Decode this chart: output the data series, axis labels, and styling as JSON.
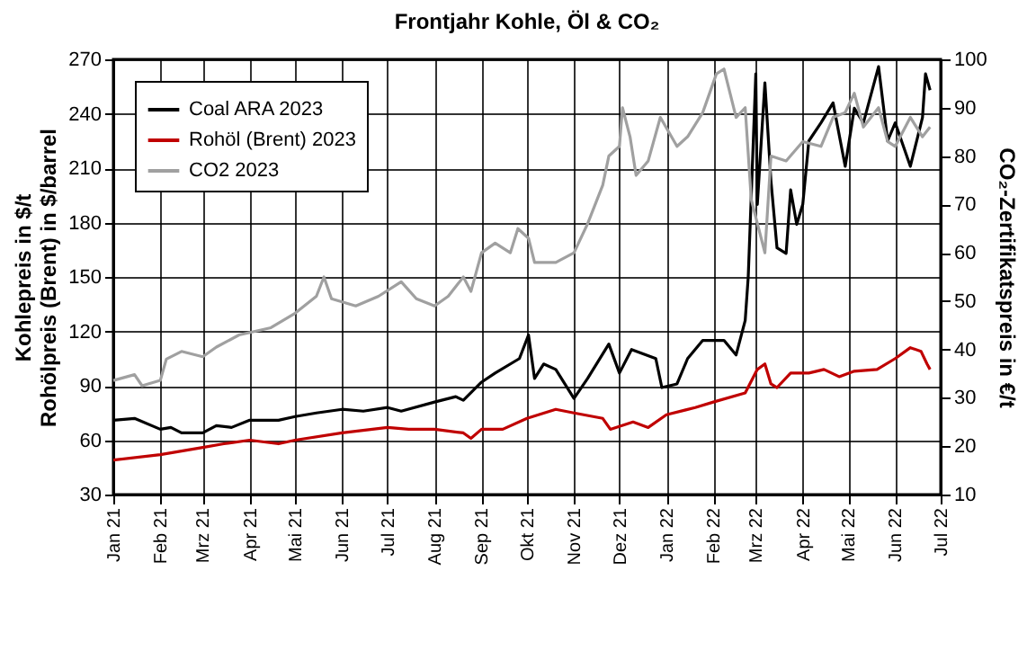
{
  "chart_data": {
    "type": "line",
    "title": "Frontjahr Kohle, Öl & CO₂",
    "ylabel": "Kohlepreis in $/t\nRohölpreis (Brent) in $/barrel",
    "y2label": "CO₂-Zertifikatspreis in €/t",
    "xlim": [
      "2021-01-01",
      "2022-07-01"
    ],
    "xticks": [
      {
        "value": "2021-01-01",
        "label": "Jan 21"
      },
      {
        "value": "2021-02-01",
        "label": "Feb 21"
      },
      {
        "value": "2021-03-01",
        "label": "Mrz 21"
      },
      {
        "value": "2021-04-01",
        "label": "Apr 21"
      },
      {
        "value": "2021-05-01",
        "label": "Mai 21"
      },
      {
        "value": "2021-06-01",
        "label": "Jun 21"
      },
      {
        "value": "2021-07-01",
        "label": "Jul 21"
      },
      {
        "value": "2021-08-01",
        "label": "Aug 21"
      },
      {
        "value": "2021-09-01",
        "label": "Sep 21"
      },
      {
        "value": "2021-10-01",
        "label": "Okt 21"
      },
      {
        "value": "2021-11-01",
        "label": "Nov 21"
      },
      {
        "value": "2021-12-01",
        "label": "Dez 21"
      },
      {
        "value": "2022-01-01",
        "label": "Jan 22"
      },
      {
        "value": "2022-02-01",
        "label": "Feb 22"
      },
      {
        "value": "2022-03-01",
        "label": "Mrz 22"
      },
      {
        "value": "2022-04-01",
        "label": "Apr 22"
      },
      {
        "value": "2022-05-01",
        "label": "Mai 22"
      },
      {
        "value": "2022-06-01",
        "label": "Jun 22"
      },
      {
        "value": "2022-07-01",
        "label": "Jul 22"
      }
    ],
    "ylim": [
      30,
      270
    ],
    "yticks": [
      30,
      60,
      90,
      120,
      150,
      180,
      210,
      240,
      270
    ],
    "y2lim": [
      10,
      100
    ],
    "y2ticks": [
      10,
      20,
      30,
      40,
      50,
      60,
      70,
      80,
      90,
      100
    ],
    "grid": true,
    "legend": "top left",
    "line_style": "solid",
    "marker": "none",
    "series": [
      {
        "name": "Coal ARA 2023",
        "color": "#000000",
        "x": [
          "2021-01-01",
          "2021-01-15",
          "2021-02-01",
          "2021-02-08",
          "2021-02-15",
          "2021-03-01",
          "2021-03-10",
          "2021-03-20",
          "2021-04-01",
          "2021-04-20",
          "2021-05-01",
          "2021-05-15",
          "2021-06-01",
          "2021-06-15",
          "2021-07-01",
          "2021-07-10",
          "2021-08-01",
          "2021-08-15",
          "2021-08-20",
          "2021-09-01",
          "2021-09-10",
          "2021-09-26",
          "2021-10-02",
          "2021-10-06",
          "2021-10-12",
          "2021-10-20",
          "2021-11-01",
          "2021-11-10",
          "2021-11-24",
          "2021-12-01",
          "2021-12-09",
          "2021-12-25",
          "2021-12-29",
          "2022-01-08",
          "2022-01-15",
          "2022-01-25",
          "2022-02-08",
          "2022-02-16",
          "2022-02-22",
          "2022-02-24",
          "2022-03-01",
          "2022-03-02",
          "2022-03-07",
          "2022-03-11",
          "2022-03-15",
          "2022-03-21",
          "2022-03-24",
          "2022-03-28",
          "2022-04-01",
          "2022-04-05",
          "2022-04-13",
          "2022-04-21",
          "2022-04-29",
          "2022-05-05",
          "2022-05-11",
          "2022-05-21",
          "2022-05-27",
          "2022-06-01",
          "2022-06-11",
          "2022-06-19",
          "2022-06-21",
          "2022-06-24"
        ],
        "values": [
          71,
          72,
          66,
          67,
          64,
          64,
          68,
          67,
          71,
          71,
          73,
          75,
          77,
          76,
          78,
          76,
          81,
          84,
          82,
          92,
          97,
          105,
          118,
          94,
          102,
          99,
          83,
          94,
          113,
          97,
          110,
          105,
          89,
          91,
          105,
          115,
          115,
          107,
          126,
          150,
          262,
          190,
          257,
          203,
          166,
          163,
          198,
          179,
          190,
          225,
          235,
          246,
          211,
          243,
          235,
          266,
          225,
          235,
          211,
          238,
          262,
          253
        ]
      },
      {
        "name": "Rohöl (Brent) 2023",
        "color": "#c00000",
        "x": [
          "2021-01-01",
          "2021-02-01",
          "2021-03-01",
          "2021-03-15",
          "2021-04-01",
          "2021-04-20",
          "2021-05-01",
          "2021-06-01",
          "2021-07-01",
          "2021-07-15",
          "2021-08-01",
          "2021-08-20",
          "2021-08-25",
          "2021-09-01",
          "2021-09-15",
          "2021-10-01",
          "2021-10-20",
          "2021-11-01",
          "2021-11-20",
          "2021-11-25",
          "2021-12-10",
          "2021-12-20",
          "2022-01-01",
          "2022-01-20",
          "2022-02-01",
          "2022-02-22",
          "2022-03-02",
          "2022-03-07",
          "2022-03-11",
          "2022-03-15",
          "2022-03-24",
          "2022-04-05",
          "2022-04-15",
          "2022-04-25",
          "2022-05-05",
          "2022-05-20",
          "2022-06-01",
          "2022-06-11",
          "2022-06-18",
          "2022-06-22",
          "2022-06-24"
        ],
        "values": [
          49,
          52,
          56,
          58,
          60,
          58,
          60,
          64,
          67,
          66,
          66,
          64,
          61,
          66,
          66,
          72,
          77,
          75,
          72,
          66,
          70,
          67,
          74,
          78,
          81,
          86,
          99,
          102,
          91,
          89,
          97,
          97,
          99,
          95,
          98,
          99,
          105,
          111,
          109,
          102,
          99
        ]
      },
      {
        "name": "CO2 2023",
        "color": "#a0a0a0",
        "axis": "y2",
        "x": [
          "2021-01-01",
          "2021-01-15",
          "2021-01-20",
          "2021-02-01",
          "2021-02-05",
          "2021-02-15",
          "2021-03-01",
          "2021-03-10",
          "2021-03-25",
          "2021-04-15",
          "2021-05-01",
          "2021-05-15",
          "2021-05-20",
          "2021-05-25",
          "2021-06-10",
          "2021-06-25",
          "2021-07-10",
          "2021-07-20",
          "2021-08-01",
          "2021-08-10",
          "2021-08-20",
          "2021-08-25",
          "2021-09-01",
          "2021-09-10",
          "2021-09-20",
          "2021-09-25",
          "2021-10-02",
          "2021-10-06",
          "2021-10-20",
          "2021-11-01",
          "2021-11-10",
          "2021-11-20",
          "2021-11-24",
          "2021-12-01",
          "2021-12-03",
          "2021-12-08",
          "2021-12-12",
          "2021-12-20",
          "2021-12-28",
          "2022-01-08",
          "2022-01-15",
          "2022-01-25",
          "2022-02-03",
          "2022-02-08",
          "2022-02-12",
          "2022-02-16",
          "2022-02-22",
          "2022-02-26",
          "2022-03-07",
          "2022-03-11",
          "2022-03-21",
          "2022-04-01",
          "2022-04-13",
          "2022-04-21",
          "2022-04-29",
          "2022-05-05",
          "2022-05-11",
          "2022-05-21",
          "2022-05-27",
          "2022-06-01",
          "2022-06-11",
          "2022-06-19",
          "2022-06-24"
        ],
        "values": [
          33.6,
          34.8,
          32.5,
          33.6,
          38,
          39.6,
          38.5,
          40.5,
          43,
          44.5,
          47.5,
          51,
          55,
          50.5,
          49,
          51,
          54,
          50.5,
          49,
          51,
          55,
          52,
          60,
          62,
          60,
          65,
          63,
          58,
          58,
          60,
          66,
          74,
          80,
          82,
          90,
          84,
          76,
          79,
          88,
          82,
          84,
          89,
          97,
          98,
          93,
          88,
          90,
          71,
          60,
          80,
          79,
          83,
          82,
          88,
          89,
          93,
          86,
          90,
          83,
          82,
          88,
          84,
          86
        ]
      }
    ]
  }
}
